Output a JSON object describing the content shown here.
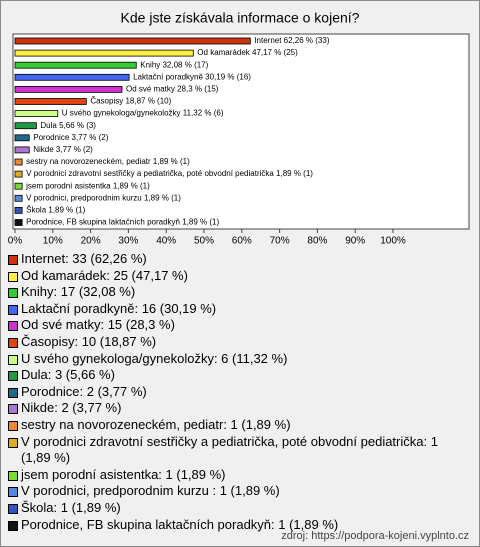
{
  "chart_data": {
    "type": "hbar",
    "title": "Kde jste získávala informace o kojení?",
    "categories": [
      "Internet",
      "Od kamarádek",
      "Knihy",
      "Laktační poradkyně",
      "Od své matky",
      "Časopisy",
      "U svého gynekologa/gynekoložky",
      "Dula",
      "Porodnice",
      "Nikde",
      "sestry na novorozeneckém, pediatr",
      "V porodnici zdravotní sestřičky a pediatrička, poté obvodní pediatrička",
      "jsem porodní asistentka",
      "V porodnici, predporodnim kurzu ",
      "Škola",
      "Porodnice, FB skupina laktačních poradkyň"
    ],
    "values": [
      62.26,
      47.17,
      32.08,
      30.19,
      28.3,
      18.87,
      11.32,
      5.66,
      3.77,
      3.77,
      1.89,
      1.89,
      1.89,
      1.89,
      1.89,
      1.89
    ],
    "value_labels": [
      "Internet 62,26 % (33)",
      "Od kamarádek 47,17 % (25)",
      "Knihy 32,08 % (17)",
      "Laktační poradkyně 30,19 % (16)",
      "Od své matky 28,3 % (15)",
      "Časopisy 18,87 % (10)",
      "U svého gynekologa/gynekoložky 11,32 % (6)",
      "Dula 5,66 % (3)",
      "Porodnice 3,77 % (2)",
      "Nikde 3,77 % (2)",
      "sestry na novorozeneckém, pediatr 1,89 % (1)",
      "V porodnici zdravotní sestřičky a pediatrička, poté obvodní pediatrička 1,89 % (1)",
      "jsem porodní asistentka 1,89 % (1)",
      "V porodnici, predporodnim kurzu  1,89 % (1)",
      "Škola 1,89 % (1)",
      "Porodnice, FB skupina laktačních poradkyň 1,89 % (1)"
    ],
    "legend_labels": [
      "Internet: 33 (62,26 %)",
      "Od kamarádek: 25 (47,17 %)",
      "Knihy: 17 (32,08 %)",
      "Laktační poradkyně: 16 (30,19 %)",
      "Od své matky: 15 (28,3 %)",
      "Časopisy: 10 (18,87 %)",
      "U svého gynekologa/gynekoložky: 6 (11,32 %)",
      "Dula: 3 (5,66 %)",
      "Porodnice: 2 (3,77 %)",
      "Nikde: 2 (3,77 %)",
      "sestry na novorozeneckém, pediatr: 1 (1,89 %)",
      "V porodnici zdravotní sestřičky a pediatrička, poté obvodní pediatrička: 1 (1,89 %)",
      "jsem porodní asistentka: 1 (1,89 %)",
      "V porodnici, predporodnim kurzu : 1 (1,89 %)",
      "Škola: 1 (1,89 %)",
      "Porodnice, FB skupina laktačních poradkyň: 1 (1,89 %)"
    ],
    "colors": [
      "#cc3311",
      "#ffee44",
      "#33cc33",
      "#4466ee",
      "#cc33cc",
      "#dd4411",
      "#ccff88",
      "#229944",
      "#226688",
      "#aa77cc",
      "#ee8833",
      "#ddaa22",
      "#77dd33",
      "#5588dd",
      "#3355bb",
      "#111111"
    ],
    "xlim": [
      0,
      100
    ],
    "xticks": [
      {
        "value": 0,
        "label": "0%"
      },
      {
        "value": 10,
        "label": "10%"
      },
      {
        "value": 20,
        "label": "20%"
      },
      {
        "value": 30,
        "label": "30%"
      },
      {
        "value": 40,
        "label": "40%"
      },
      {
        "value": 50,
        "label": "50%"
      },
      {
        "value": 60,
        "label": "60%"
      },
      {
        "value": 70,
        "label": "70%"
      },
      {
        "value": 80,
        "label": "80%"
      },
      {
        "value": 90,
        "label": "90%"
      },
      {
        "value": 100,
        "label": "100%"
      }
    ],
    "source": "zdroj: https://podpora-kojeni.vyplnto.cz"
  }
}
